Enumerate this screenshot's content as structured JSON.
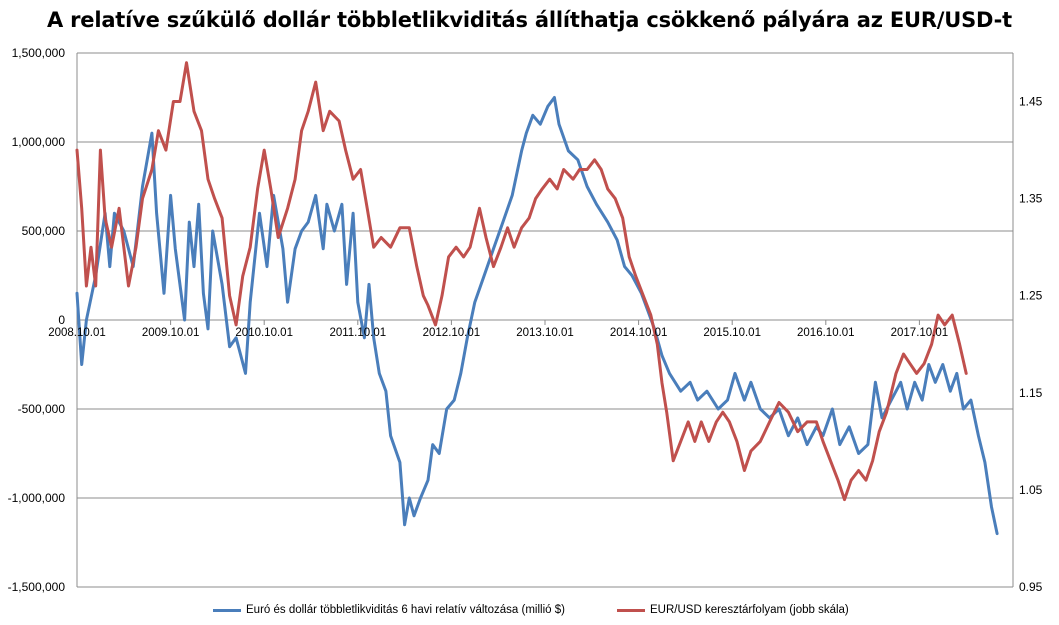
{
  "chart_data": {
    "type": "line",
    "title": "A relatíve szűkülő dollár többletlikviditás állíthatja csökkenő pályára az EUR/USD-t",
    "x_tick_labels": [
      "2008.10.01",
      "2009.10.01",
      "2010.10.01",
      "2011.10.01",
      "2012.10.01",
      "2013.10.01",
      "2014.10.01",
      "2015.10.01",
      "2016.10.01",
      "2017.10.01"
    ],
    "x_range": [
      2008.75,
      2018.75
    ],
    "y_left": {
      "ylim": [
        -1500000,
        1500000
      ],
      "ticks": [
        1500000,
        1000000,
        500000,
        0,
        -500000,
        -1000000,
        -1500000
      ],
      "tick_labels": [
        "1,500,000",
        "1,000,000",
        "500,000",
        "0",
        "-500,000",
        "-1,000,000",
        "-1,500,000"
      ]
    },
    "y_right": {
      "ylim": [
        0.95,
        1.5
      ],
      "ticks": [
        1.45,
        1.35,
        1.25,
        1.15,
        1.05,
        0.95
      ],
      "tick_labels": [
        "1.45",
        "1.35",
        "1.25",
        "1.15",
        "1.05",
        "0.95"
      ]
    },
    "grid": true,
    "legend_position": "bottom",
    "series": [
      {
        "name": "Euró és dollár többletlikviditás 6 havi relatív változása (millió $)",
        "axis": "left",
        "color": "#4a7ebb",
        "points": [
          [
            2008.75,
            150000
          ],
          [
            2008.8,
            -250000
          ],
          [
            2008.85,
            0
          ],
          [
            2008.95,
            250000
          ],
          [
            2009.05,
            600000
          ],
          [
            2009.1,
            300000
          ],
          [
            2009.15,
            600000
          ],
          [
            2009.25,
            500000
          ],
          [
            2009.35,
            300000
          ],
          [
            2009.45,
            750000
          ],
          [
            2009.55,
            1050000
          ],
          [
            2009.6,
            600000
          ],
          [
            2009.68,
            150000
          ],
          [
            2009.75,
            700000
          ],
          [
            2009.8,
            400000
          ],
          [
            2009.9,
            0
          ],
          [
            2009.95,
            550000
          ],
          [
            2010.0,
            300000
          ],
          [
            2010.05,
            650000
          ],
          [
            2010.1,
            150000
          ],
          [
            2010.15,
            -50000
          ],
          [
            2010.2,
            500000
          ],
          [
            2010.3,
            200000
          ],
          [
            2010.38,
            -150000
          ],
          [
            2010.45,
            -100000
          ],
          [
            2010.55,
            -300000
          ],
          [
            2010.6,
            100000
          ],
          [
            2010.7,
            600000
          ],
          [
            2010.78,
            300000
          ],
          [
            2010.85,
            700000
          ],
          [
            2010.95,
            400000
          ],
          [
            2011.0,
            100000
          ],
          [
            2011.08,
            400000
          ],
          [
            2011.15,
            500000
          ],
          [
            2011.22,
            550000
          ],
          [
            2011.3,
            700000
          ],
          [
            2011.38,
            400000
          ],
          [
            2011.42,
            650000
          ],
          [
            2011.5,
            500000
          ],
          [
            2011.58,
            650000
          ],
          [
            2011.63,
            200000
          ],
          [
            2011.7,
            600000
          ],
          [
            2011.75,
            100000
          ],
          [
            2011.82,
            -100000
          ],
          [
            2011.87,
            200000
          ],
          [
            2011.92,
            -100000
          ],
          [
            2011.98,
            -300000
          ],
          [
            2012.05,
            -400000
          ],
          [
            2012.1,
            -650000
          ],
          [
            2012.2,
            -800000
          ],
          [
            2012.25,
            -1150000
          ],
          [
            2012.3,
            -1000000
          ],
          [
            2012.35,
            -1100000
          ],
          [
            2012.42,
            -1000000
          ],
          [
            2012.5,
            -900000
          ],
          [
            2012.55,
            -700000
          ],
          [
            2012.62,
            -750000
          ],
          [
            2012.7,
            -500000
          ],
          [
            2012.78,
            -450000
          ],
          [
            2012.85,
            -300000
          ],
          [
            2012.92,
            -100000
          ],
          [
            2013.0,
            100000
          ],
          [
            2013.1,
            250000
          ],
          [
            2013.2,
            400000
          ],
          [
            2013.3,
            550000
          ],
          [
            2013.4,
            700000
          ],
          [
            2013.5,
            950000
          ],
          [
            2013.55,
            1050000
          ],
          [
            2013.62,
            1150000
          ],
          [
            2013.7,
            1100000
          ],
          [
            2013.78,
            1200000
          ],
          [
            2013.85,
            1250000
          ],
          [
            2013.9,
            1100000
          ],
          [
            2014.0,
            950000
          ],
          [
            2014.1,
            900000
          ],
          [
            2014.2,
            750000
          ],
          [
            2014.3,
            650000
          ],
          [
            2014.42,
            550000
          ],
          [
            2014.52,
            450000
          ],
          [
            2014.6,
            300000
          ],
          [
            2014.68,
            250000
          ],
          [
            2014.78,
            150000
          ],
          [
            2014.85,
            50000
          ],
          [
            2014.92,
            -50000
          ],
          [
            2015.0,
            -200000
          ],
          [
            2015.08,
            -300000
          ],
          [
            2015.2,
            -400000
          ],
          [
            2015.3,
            -350000
          ],
          [
            2015.38,
            -450000
          ],
          [
            2015.48,
            -400000
          ],
          [
            2015.6,
            -500000
          ],
          [
            2015.7,
            -450000
          ],
          [
            2015.78,
            -300000
          ],
          [
            2015.88,
            -450000
          ],
          [
            2015.95,
            -350000
          ],
          [
            2016.05,
            -500000
          ],
          [
            2016.15,
            -550000
          ],
          [
            2016.25,
            -500000
          ],
          [
            2016.35,
            -650000
          ],
          [
            2016.45,
            -550000
          ],
          [
            2016.55,
            -700000
          ],
          [
            2016.65,
            -600000
          ],
          [
            2016.72,
            -650000
          ],
          [
            2016.82,
            -500000
          ],
          [
            2016.9,
            -700000
          ],
          [
            2017.0,
            -600000
          ],
          [
            2017.1,
            -750000
          ],
          [
            2017.2,
            -700000
          ],
          [
            2017.28,
            -350000
          ],
          [
            2017.35,
            -550000
          ],
          [
            2017.45,
            -450000
          ],
          [
            2017.55,
            -350000
          ],
          [
            2017.62,
            -500000
          ],
          [
            2017.7,
            -350000
          ],
          [
            2017.78,
            -450000
          ],
          [
            2017.85,
            -250000
          ],
          [
            2017.92,
            -350000
          ],
          [
            2018.0,
            -250000
          ],
          [
            2018.08,
            -400000
          ],
          [
            2018.15,
            -300000
          ],
          [
            2018.22,
            -500000
          ],
          [
            2018.3,
            -450000
          ],
          [
            2018.38,
            -650000
          ],
          [
            2018.45,
            -800000
          ],
          [
            2018.52,
            -1050000
          ],
          [
            2018.58,
            -1200000
          ]
        ]
      },
      {
        "name": "EUR/USD keresztárfolyam (jobb skála)",
        "axis": "right",
        "color": "#c0504d",
        "points": [
          [
            2008.75,
            1.4
          ],
          [
            2008.8,
            1.34
          ],
          [
            2008.85,
            1.26
          ],
          [
            2008.9,
            1.3
          ],
          [
            2008.95,
            1.26
          ],
          [
            2009.0,
            1.4
          ],
          [
            2009.05,
            1.33
          ],
          [
            2009.12,
            1.3
          ],
          [
            2009.2,
            1.34
          ],
          [
            2009.3,
            1.26
          ],
          [
            2009.38,
            1.3
          ],
          [
            2009.45,
            1.35
          ],
          [
            2009.55,
            1.38
          ],
          [
            2009.62,
            1.42
          ],
          [
            2009.7,
            1.4
          ],
          [
            2009.78,
            1.45
          ],
          [
            2009.85,
            1.45
          ],
          [
            2009.92,
            1.49
          ],
          [
            2010.0,
            1.44
          ],
          [
            2010.08,
            1.42
          ],
          [
            2010.15,
            1.37
          ],
          [
            2010.22,
            1.35
          ],
          [
            2010.3,
            1.33
          ],
          [
            2010.38,
            1.25
          ],
          [
            2010.45,
            1.22
          ],
          [
            2010.52,
            1.27
          ],
          [
            2010.6,
            1.3
          ],
          [
            2010.68,
            1.36
          ],
          [
            2010.75,
            1.4
          ],
          [
            2010.82,
            1.36
          ],
          [
            2010.9,
            1.31
          ],
          [
            2011.0,
            1.34
          ],
          [
            2011.08,
            1.37
          ],
          [
            2011.15,
            1.42
          ],
          [
            2011.22,
            1.44
          ],
          [
            2011.3,
            1.47
          ],
          [
            2011.38,
            1.42
          ],
          [
            2011.45,
            1.44
          ],
          [
            2011.55,
            1.43
          ],
          [
            2011.62,
            1.4
          ],
          [
            2011.7,
            1.37
          ],
          [
            2011.78,
            1.38
          ],
          [
            2011.85,
            1.34
          ],
          [
            2011.92,
            1.3
          ],
          [
            2012.0,
            1.31
          ],
          [
            2012.1,
            1.3
          ],
          [
            2012.2,
            1.32
          ],
          [
            2012.3,
            1.32
          ],
          [
            2012.38,
            1.28
          ],
          [
            2012.45,
            1.25
          ],
          [
            2012.5,
            1.24
          ],
          [
            2012.58,
            1.22
          ],
          [
            2012.65,
            1.25
          ],
          [
            2012.72,
            1.29
          ],
          [
            2012.8,
            1.3
          ],
          [
            2012.88,
            1.29
          ],
          [
            2012.95,
            1.3
          ],
          [
            2013.05,
            1.34
          ],
          [
            2013.12,
            1.31
          ],
          [
            2013.2,
            1.28
          ],
          [
            2013.28,
            1.3
          ],
          [
            2013.35,
            1.32
          ],
          [
            2013.42,
            1.3
          ],
          [
            2013.5,
            1.32
          ],
          [
            2013.58,
            1.33
          ],
          [
            2013.65,
            1.35
          ],
          [
            2013.72,
            1.36
          ],
          [
            2013.8,
            1.37
          ],
          [
            2013.88,
            1.36
          ],
          [
            2013.95,
            1.38
          ],
          [
            2014.05,
            1.37
          ],
          [
            2014.12,
            1.38
          ],
          [
            2014.2,
            1.38
          ],
          [
            2014.28,
            1.39
          ],
          [
            2014.35,
            1.38
          ],
          [
            2014.42,
            1.36
          ],
          [
            2014.5,
            1.35
          ],
          [
            2014.58,
            1.33
          ],
          [
            2014.65,
            1.29
          ],
          [
            2014.72,
            1.27
          ],
          [
            2014.8,
            1.25
          ],
          [
            2014.88,
            1.23
          ],
          [
            2014.95,
            1.2
          ],
          [
            2015.0,
            1.16
          ],
          [
            2015.05,
            1.13
          ],
          [
            2015.12,
            1.08
          ],
          [
            2015.2,
            1.1
          ],
          [
            2015.28,
            1.12
          ],
          [
            2015.35,
            1.1
          ],
          [
            2015.42,
            1.12
          ],
          [
            2015.5,
            1.1
          ],
          [
            2015.58,
            1.12
          ],
          [
            2015.65,
            1.13
          ],
          [
            2015.72,
            1.12
          ],
          [
            2015.8,
            1.1
          ],
          [
            2015.88,
            1.07
          ],
          [
            2015.95,
            1.09
          ],
          [
            2016.05,
            1.1
          ],
          [
            2016.15,
            1.12
          ],
          [
            2016.25,
            1.14
          ],
          [
            2016.35,
            1.13
          ],
          [
            2016.45,
            1.11
          ],
          [
            2016.55,
            1.12
          ],
          [
            2016.65,
            1.12
          ],
          [
            2016.72,
            1.1
          ],
          [
            2016.8,
            1.08
          ],
          [
            2016.88,
            1.06
          ],
          [
            2016.95,
            1.04
          ],
          [
            2017.02,
            1.06
          ],
          [
            2017.1,
            1.07
          ],
          [
            2017.18,
            1.06
          ],
          [
            2017.25,
            1.08
          ],
          [
            2017.32,
            1.11
          ],
          [
            2017.4,
            1.13
          ],
          [
            2017.5,
            1.17
          ],
          [
            2017.58,
            1.19
          ],
          [
            2017.65,
            1.18
          ],
          [
            2017.72,
            1.17
          ],
          [
            2017.8,
            1.18
          ],
          [
            2017.88,
            1.2
          ],
          [
            2017.95,
            1.23
          ],
          [
            2018.02,
            1.22
          ],
          [
            2018.1,
            1.23
          ],
          [
            2018.18,
            1.2
          ],
          [
            2018.25,
            1.17
          ]
        ]
      }
    ]
  }
}
